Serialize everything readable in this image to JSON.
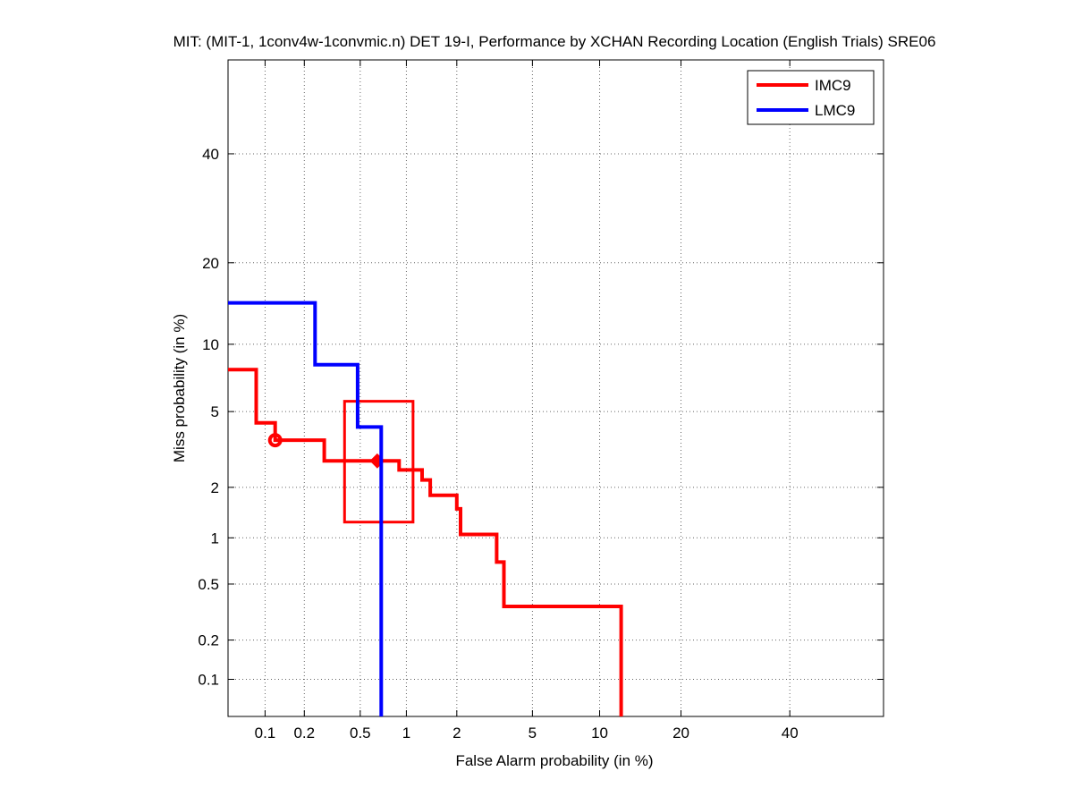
{
  "chart_data": {
    "type": "line",
    "scale": "normal-deviate (probit) on both axes",
    "title": "MIT: (MIT-1, 1conv4w-1convmic.n) DET 19-I,  Performance by XCHAN Recording Location (English Trials) SRE06",
    "xlabel": "False Alarm probability (in %)",
    "ylabel": "Miss probability (in %)",
    "xlim": [
      0.05,
      60
    ],
    "ylim": [
      0.05,
      60
    ],
    "xticks": [
      0.1,
      0.2,
      0.5,
      1,
      2,
      5,
      10,
      20,
      40
    ],
    "xtick_labels": [
      "0.1",
      "0.2",
      "0.5",
      "1",
      "2",
      "5",
      "10",
      "20",
      "40"
    ],
    "yticks": [
      0.1,
      0.2,
      0.5,
      1,
      2,
      5,
      10,
      20,
      40
    ],
    "ytick_labels": [
      "0.1",
      "0.2",
      "0.5",
      "1",
      "2",
      "5",
      "10",
      "20",
      "40"
    ],
    "grid": true,
    "legend_position": "top-right",
    "series": [
      {
        "name": "IMC9",
        "color": "#ff0000",
        "points": [
          [
            0.05,
            7.8
          ],
          [
            0.085,
            7.8
          ],
          [
            0.085,
            4.4
          ],
          [
            0.12,
            4.4
          ],
          [
            0.12,
            3.6
          ],
          [
            0.28,
            3.6
          ],
          [
            0.28,
            2.8
          ],
          [
            0.9,
            2.8
          ],
          [
            0.9,
            2.5
          ],
          [
            1.25,
            2.5
          ],
          [
            1.25,
            2.2
          ],
          [
            1.4,
            2.2
          ],
          [
            1.4,
            1.8
          ],
          [
            2.0,
            1.8
          ],
          [
            2.0,
            1.5
          ],
          [
            2.1,
            1.5
          ],
          [
            2.1,
            1.05
          ],
          [
            3.3,
            1.05
          ],
          [
            3.3,
            0.7
          ],
          [
            3.6,
            0.7
          ],
          [
            3.6,
            0.35
          ],
          [
            12.2,
            0.35
          ],
          [
            12.2,
            0.05
          ]
        ],
        "markers": [
          {
            "shape": "circle",
            "x": 0.12,
            "y": 3.6
          },
          {
            "shape": "diamond",
            "x": 0.65,
            "y": 2.8
          }
        ],
        "confidence_box": {
          "x": [
            0.39,
            1.1
          ],
          "y": [
            1.25,
            5.6
          ]
        }
      },
      {
        "name": "LMC9",
        "color": "#0000ff",
        "points": [
          [
            0.05,
            14.5
          ],
          [
            0.24,
            14.5
          ],
          [
            0.24,
            8.2
          ],
          [
            0.48,
            8.2
          ],
          [
            0.48,
            4.2
          ],
          [
            0.69,
            4.2
          ],
          [
            0.69,
            0.05
          ]
        ]
      }
    ]
  }
}
